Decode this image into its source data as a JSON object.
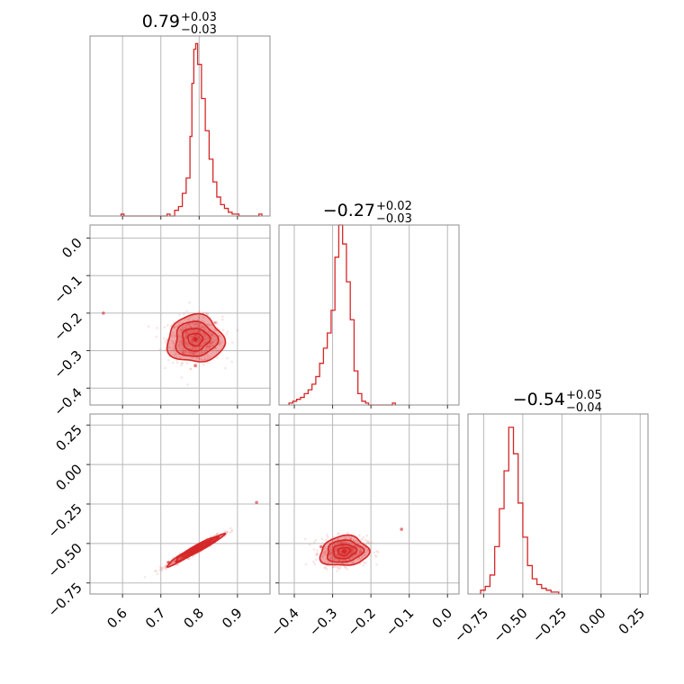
{
  "chart_data": [
    {
      "type": "histogram",
      "panel": "param0-marginal",
      "title": {
        "value": "0.79",
        "plus": "+0.03",
        "minus": "−0.03"
      },
      "xlim": [
        0.515,
        0.985
      ],
      "xticks": [
        0.6,
        0.7,
        0.8,
        0.9
      ],
      "grid": true,
      "color": "#d62728",
      "bins": [
        [
          0.6,
          0.01
        ],
        [
          0.72,
          0.01
        ],
        [
          0.74,
          0.03
        ],
        [
          0.75,
          0.05
        ],
        [
          0.76,
          0.12
        ],
        [
          0.77,
          0.2
        ],
        [
          0.78,
          0.42
        ],
        [
          0.785,
          0.7
        ],
        [
          0.79,
          0.88
        ],
        [
          0.795,
          0.91
        ],
        [
          0.8,
          0.8
        ],
        [
          0.81,
          0.62
        ],
        [
          0.82,
          0.45
        ],
        [
          0.83,
          0.3
        ],
        [
          0.84,
          0.18
        ],
        [
          0.85,
          0.1
        ],
        [
          0.86,
          0.06
        ],
        [
          0.87,
          0.04
        ],
        [
          0.88,
          0.02
        ],
        [
          0.89,
          0.01
        ],
        [
          0.9,
          0.01
        ],
        [
          0.96,
          0.01
        ]
      ]
    },
    {
      "type": "histogram",
      "panel": "param1-marginal",
      "title": {
        "value": "−0.27",
        "plus": "+0.02",
        "minus": "−0.03"
      },
      "xlim": [
        -0.44,
        0.03
      ],
      "xticks": [
        -0.4,
        -0.3,
        -0.2,
        -0.1,
        0.0
      ],
      "grid": true,
      "color": "#d62728",
      "bins": [
        [
          -0.41,
          0.01
        ],
        [
          -0.4,
          0.02
        ],
        [
          -0.39,
          0.03
        ],
        [
          -0.38,
          0.04
        ],
        [
          -0.37,
          0.06
        ],
        [
          -0.36,
          0.08
        ],
        [
          -0.35,
          0.11
        ],
        [
          -0.34,
          0.15
        ],
        [
          -0.33,
          0.22
        ],
        [
          -0.32,
          0.3
        ],
        [
          -0.31,
          0.38
        ],
        [
          -0.3,
          0.5
        ],
        [
          -0.29,
          0.78
        ],
        [
          -0.28,
          0.95
        ],
        [
          -0.27,
          0.85
        ],
        [
          -0.26,
          0.65
        ],
        [
          -0.25,
          0.45
        ],
        [
          -0.24,
          0.18
        ],
        [
          -0.23,
          0.06
        ],
        [
          -0.22,
          0.02
        ],
        [
          -0.21,
          0.01
        ],
        [
          -0.14,
          0.01
        ]
      ]
    },
    {
      "type": "histogram",
      "panel": "param2-marginal",
      "title": {
        "value": "−0.54",
        "plus": "+0.05",
        "minus": "−0.04"
      },
      "xlim": [
        -0.85,
        0.3
      ],
      "xticks": [
        -0.75,
        -0.5,
        -0.25,
        0.0,
        0.25
      ],
      "grid": true,
      "color": "#d62728",
      "bins": [
        [
          -0.76,
          0.02
        ],
        [
          -0.73,
          0.04
        ],
        [
          -0.7,
          0.1
        ],
        [
          -0.67,
          0.25
        ],
        [
          -0.64,
          0.45
        ],
        [
          -0.61,
          0.65
        ],
        [
          -0.58,
          0.88
        ],
        [
          -0.55,
          0.74
        ],
        [
          -0.52,
          0.48
        ],
        [
          -0.49,
          0.3
        ],
        [
          -0.46,
          0.15
        ],
        [
          -0.43,
          0.08
        ],
        [
          -0.4,
          0.05
        ],
        [
          -0.37,
          0.03
        ],
        [
          -0.34,
          0.02
        ],
        [
          -0.31,
          0.01
        ],
        [
          -0.28,
          0.01
        ]
      ]
    },
    {
      "type": "scatter",
      "panel": "param1-vs-param0",
      "xlim": [
        0.515,
        0.985
      ],
      "ylim": [
        -0.445,
        0.035
      ],
      "xticks": [
        0.6,
        0.7,
        0.8,
        0.9
      ],
      "yticks": [
        0.0,
        -0.1,
        -0.2,
        -0.3,
        -0.4
      ],
      "grid": true,
      "color": "#d62728",
      "center": [
        0.79,
        -0.27
      ],
      "spread": [
        0.035,
        0.03
      ],
      "correlation": 0.0,
      "contour_scales": [
        0.55,
        1.0,
        1.55,
        2.1
      ],
      "outliers": [
        [
          0.79,
          -0.34
        ],
        [
          0.55,
          -0.2
        ]
      ]
    },
    {
      "type": "scatter",
      "panel": "param2-vs-param0",
      "xlim": [
        0.515,
        0.985
      ],
      "ylim": [
        -0.82,
        0.32
      ],
      "xticks": [
        0.6,
        0.7,
        0.8,
        0.9
      ],
      "yticks": [
        0.25,
        0.0,
        -0.25,
        -0.5,
        -0.75
      ],
      "grid": true,
      "color": "#d62728",
      "center": [
        0.79,
        -0.54
      ],
      "spread": [
        0.035,
        0.048
      ],
      "correlation": 0.97,
      "contour_scales": [
        0.55,
        1.0,
        1.55,
        2.1
      ],
      "outliers": [
        [
          0.72,
          -0.62
        ],
        [
          0.95,
          -0.24
        ]
      ]
    },
    {
      "type": "scatter",
      "panel": "param2-vs-param1",
      "xlim": [
        -0.44,
        0.03
      ],
      "ylim": [
        -0.82,
        0.32
      ],
      "xticks": [
        -0.4,
        -0.3,
        -0.2,
        -0.1,
        0.0
      ],
      "yticks": [
        0.25,
        0.0,
        -0.25,
        -0.5,
        -0.75
      ],
      "grid": true,
      "color": "#d62728",
      "center": [
        -0.27,
        -0.55
      ],
      "spread": [
        0.03,
        0.045
      ],
      "correlation": 0.1,
      "contour_scales": [
        0.55,
        1.0,
        1.55,
        2.1
      ],
      "outliers": [
        [
          -0.33,
          -0.52
        ],
        [
          -0.12,
          -0.41
        ]
      ]
    }
  ]
}
